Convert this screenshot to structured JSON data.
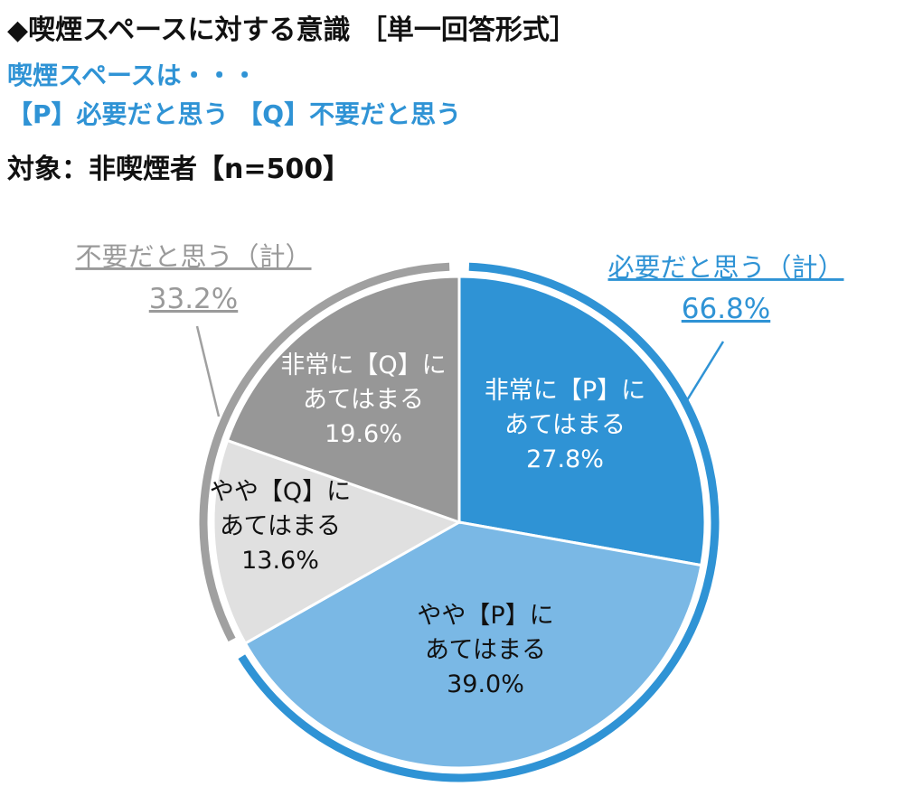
{
  "header": {
    "title": "◆喫煙スペースに対する意識 ［単一回答形式］",
    "subtitle_line1": "喫煙スペースは・・・",
    "subtitle_line2": "【P】必要だと思う 【Q】不要だと思う",
    "target": "対象：非喫煙者【n=500】"
  },
  "colors": {
    "very_p": "#2f93d5",
    "somewhat_p": "#7ab8e5",
    "somewhat_q": "#e0e0e0",
    "very_q": "#979797",
    "ring_p": "#2f93d5",
    "ring_q": "#a0a0a0",
    "sum_p_text": "#2f93d5",
    "sum_q_text": "#9a9a9a"
  },
  "chart_data": {
    "type": "pie",
    "start": "12 o'clock, clockwise",
    "slices": [
      {
        "key": "very_p",
        "label_line1": "非常に【P】に",
        "label_line2": "あてはまる",
        "value": 27.8,
        "value_text": "27.8%",
        "text_color": "#ffffff"
      },
      {
        "key": "somewhat_p",
        "label_line1": "やや【P】に",
        "label_line2": "あてはまる",
        "value": 39.0,
        "value_text": "39.0%",
        "text_color": "#111111"
      },
      {
        "key": "somewhat_q",
        "label_line1": "やや【Q】に",
        "label_line2": "あてはまる",
        "value": 13.6,
        "value_text": "13.6%",
        "text_color": "#111111"
      },
      {
        "key": "very_q",
        "label_line1": "非常に【Q】に",
        "label_line2": "あてはまる",
        "value": 19.6,
        "value_text": "19.6%",
        "text_color": "#ffffff"
      }
    ],
    "totals": [
      {
        "key": "p",
        "label": "必要だと思う（計）",
        "value": 66.8,
        "value_text": "66.8%"
      },
      {
        "key": "q",
        "label": "不要だと思う（計）",
        "value": 33.2,
        "value_text": "33.2%"
      }
    ]
  }
}
